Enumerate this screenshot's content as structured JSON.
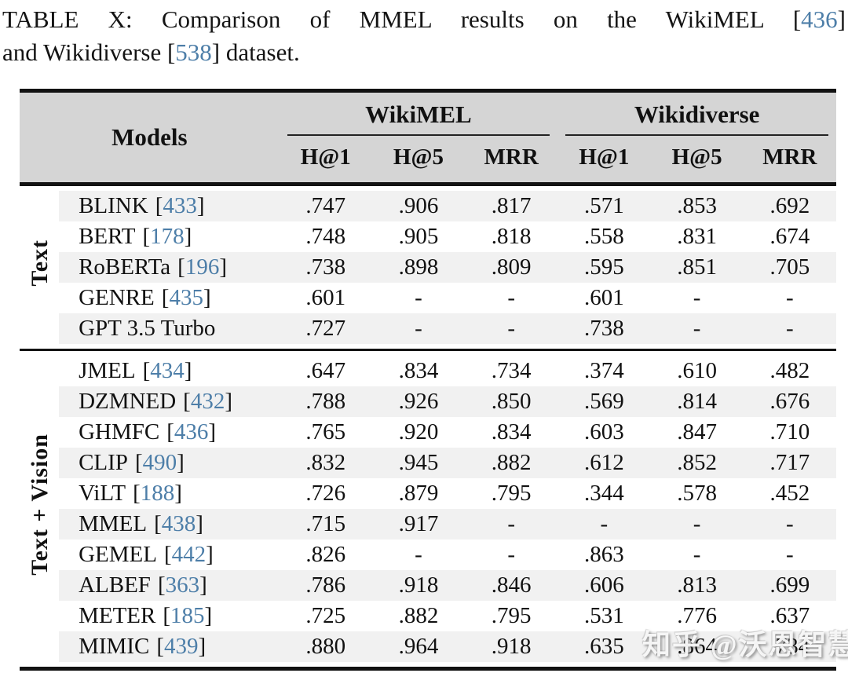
{
  "caption": {
    "line1_text": "TABLE X: Comparison of MMEL results on the WikiMEL",
    "line1_cite": "436",
    "line2_text1": "and Wikidiverse",
    "line2_cite": "538",
    "line2_text2": "dataset."
  },
  "punct": {
    "bracket_open": "[",
    "bracket_close": "]"
  },
  "table": {
    "header": {
      "models_label": "Models",
      "dataset_groups": [
        {
          "label": "WikiMEL"
        },
        {
          "label": "Wikidiverse"
        }
      ],
      "subheaders": [
        "H@1",
        "H@5",
        "MRR",
        "H@1",
        "H@5",
        "MRR"
      ]
    },
    "row_groups": [
      {
        "label": "Text",
        "rows": [
          {
            "model": "BLINK",
            "cite": "433",
            "values": [
              ".747",
              ".906",
              ".817",
              ".571",
              ".853",
              ".692"
            ]
          },
          {
            "model": "BERT",
            "cite": "178",
            "values": [
              ".748",
              ".905",
              ".818",
              ".558",
              ".831",
              ".674"
            ]
          },
          {
            "model": "RoBERTa",
            "cite": "196",
            "values": [
              ".738",
              ".898",
              ".809",
              ".595",
              ".851",
              ".705"
            ]
          },
          {
            "model": "GENRE",
            "cite": "435",
            "values": [
              ".601",
              "-",
              "-",
              ".601",
              "-",
              "-"
            ]
          },
          {
            "model": "GPT 3.5 Turbo",
            "cite": null,
            "values": [
              ".727",
              "-",
              "-",
              ".738",
              "-",
              "-"
            ]
          }
        ]
      },
      {
        "label": "Text + Vision",
        "rows": [
          {
            "model": "JMEL",
            "cite": "434",
            "values": [
              ".647",
              ".834",
              ".734",
              ".374",
              ".610",
              ".482"
            ]
          },
          {
            "model": "DZMNED",
            "cite": "432",
            "values": [
              ".788",
              ".926",
              ".850",
              ".569",
              ".814",
              ".676"
            ]
          },
          {
            "model": "GHMFC",
            "cite": "436",
            "values": [
              ".765",
              ".920",
              ".834",
              ".603",
              ".847",
              ".710"
            ]
          },
          {
            "model": "CLIP",
            "cite": "490",
            "values": [
              ".832",
              ".945",
              ".882",
              ".612",
              ".852",
              ".717"
            ]
          },
          {
            "model": "ViLT",
            "cite": "188",
            "values": [
              ".726",
              ".879",
              ".795",
              ".344",
              ".578",
              ".452"
            ]
          },
          {
            "model": "MMEL",
            "cite": "438",
            "values": [
              ".715",
              ".917",
              "-",
              "-",
              "-",
              "-"
            ]
          },
          {
            "model": "GEMEL",
            "cite": "442",
            "values": [
              ".826",
              "-",
              "-",
              ".863",
              "-",
              "-"
            ]
          },
          {
            "model": "ALBEF",
            "cite": "363",
            "values": [
              ".786",
              ".918",
              ".846",
              ".606",
              ".813",
              ".699"
            ]
          },
          {
            "model": "METER",
            "cite": "185",
            "values": [
              ".725",
              ".882",
              ".795",
              ".531",
              ".776",
              ".637"
            ]
          },
          {
            "model": "MIMIC",
            "cite": "439",
            "values": [
              ".880",
              ".964",
              ".918",
              ".635",
              ".864",
              ".734"
            ]
          }
        ]
      }
    ]
  },
  "watermark": {
    "text": "知乎 @沃恩智慧"
  },
  "colors": {
    "citation_blue": "#4d7ea8",
    "header_bg": "#d5d5d5",
    "stripe_bg": "#f1f1f1",
    "rule_black": "#121212"
  }
}
